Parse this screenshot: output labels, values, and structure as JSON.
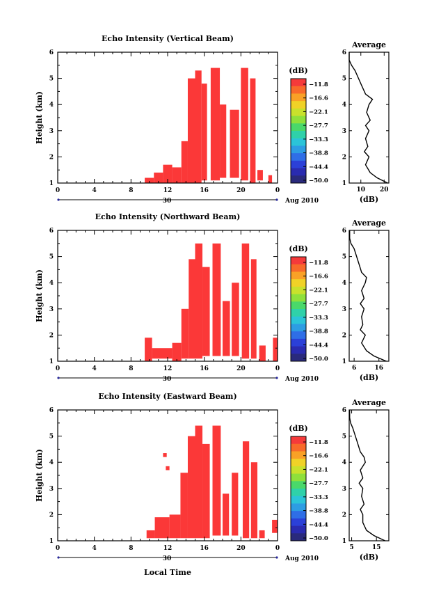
{
  "figure": {
    "xlabel": "Local Time",
    "date_label": "Aug 2010",
    "date_day": "30"
  },
  "chart_data": [
    {
      "type": "heatmap",
      "title": "Echo Intensity (Vertical Beam)",
      "ylabel": "Height (km)",
      "xlim": [
        0,
        24
      ],
      "ylim": [
        1,
        6
      ],
      "xticks": [
        "0",
        "4",
        "8",
        "12",
        "16",
        "20",
        "0"
      ],
      "yticks": [
        "1",
        "2",
        "3",
        "4",
        "5",
        "6"
      ],
      "colorbar": {
        "unit": "(dB)",
        "labels": [
          "-11.8",
          "-16.6",
          "-22.1",
          "-27.7",
          "-33.3",
          "-38.8",
          "-44.4",
          "-50.0"
        ]
      },
      "echo_regions": [
        {
          "t0": 9.5,
          "t1": 10.5,
          "h0": 1.0,
          "h1": 1.2
        },
        {
          "t0": 10.5,
          "t1": 11.5,
          "h0": 1.0,
          "h1": 1.4
        },
        {
          "t0": 11.5,
          "t1": 12.5,
          "h0": 1.0,
          "h1": 1.7
        },
        {
          "t0": 12.5,
          "t1": 13.5,
          "h0": 1.0,
          "h1": 1.6
        },
        {
          "t0": 13.5,
          "t1": 14.2,
          "h0": 1.0,
          "h1": 2.6
        },
        {
          "t0": 14.2,
          "t1": 15.0,
          "h0": 1.0,
          "h1": 5.0
        },
        {
          "t0": 15.0,
          "t1": 15.7,
          "h0": 1.0,
          "h1": 5.3
        },
        {
          "t0": 15.7,
          "t1": 16.3,
          "h0": 1.1,
          "h1": 4.8
        },
        {
          "t0": 16.7,
          "t1": 17.7,
          "h0": 1.1,
          "h1": 5.4
        },
        {
          "t0": 17.7,
          "t1": 18.4,
          "h0": 1.2,
          "h1": 4.0
        },
        {
          "t0": 18.8,
          "t1": 19.8,
          "h0": 1.2,
          "h1": 3.8
        },
        {
          "t0": 20.0,
          "t1": 20.8,
          "h0": 1.1,
          "h1": 5.4
        },
        {
          "t0": 21.0,
          "t1": 21.6,
          "h0": 1.0,
          "h1": 5.0
        },
        {
          "t0": 21.8,
          "t1": 22.4,
          "h0": 1.1,
          "h1": 1.5
        },
        {
          "t0": 23.0,
          "t1": 23.4,
          "h0": 1.0,
          "h1": 1.3
        }
      ],
      "profile": {
        "title": "Average",
        "xlabel": "(dB)",
        "xlim": [
          5,
          22
        ],
        "xticks": [
          10,
          20
        ],
        "xtick_labels": [
          "10",
          "20"
        ],
        "heights": [
          1.0,
          1.2,
          1.4,
          1.7,
          2.0,
          2.2,
          2.4,
          2.7,
          3.0,
          3.2,
          3.4,
          3.7,
          4.0,
          4.2,
          4.4,
          4.7,
          5.0,
          5.3,
          5.5,
          5.7,
          6.0
        ],
        "values": [
          21.5,
          17,
          14,
          12,
          13.5,
          11.5,
          13,
          12,
          13.5,
          12,
          14,
          12.5,
          13.5,
          15,
          12,
          10.5,
          9,
          7.5,
          6,
          5,
          5
        ]
      }
    },
    {
      "type": "heatmap",
      "title": "Echo Intensity (Northward Beam)",
      "ylabel": "Height (km)",
      "xlim": [
        0,
        24
      ],
      "ylim": [
        1,
        6
      ],
      "xticks": [
        "0",
        "4",
        "8",
        "12",
        "16",
        "20",
        "0"
      ],
      "yticks": [
        "1",
        "2",
        "3",
        "4",
        "5",
        "6"
      ],
      "colorbar": {
        "unit": "(dB)",
        "labels": [
          "-11.8",
          "-16.6",
          "-22.1",
          "-27.7",
          "-33.3",
          "-38.8",
          "-44.4",
          "-50.0"
        ]
      },
      "echo_regions": [
        {
          "t0": 9.5,
          "t1": 10.3,
          "h0": 1.0,
          "h1": 1.9
        },
        {
          "t0": 10.3,
          "t1": 12.5,
          "h0": 1.1,
          "h1": 1.5
        },
        {
          "t0": 12.5,
          "t1": 13.5,
          "h0": 1.0,
          "h1": 1.7
        },
        {
          "t0": 13.5,
          "t1": 14.3,
          "h0": 1.1,
          "h1": 3.0
        },
        {
          "t0": 14.3,
          "t1": 15.0,
          "h0": 1.1,
          "h1": 4.9
        },
        {
          "t0": 15.0,
          "t1": 15.8,
          "h0": 1.1,
          "h1": 5.5
        },
        {
          "t0": 15.8,
          "t1": 16.6,
          "h0": 1.2,
          "h1": 4.6
        },
        {
          "t0": 16.9,
          "t1": 17.8,
          "h0": 1.2,
          "h1": 5.5
        },
        {
          "t0": 18.0,
          "t1": 18.8,
          "h0": 1.2,
          "h1": 3.3
        },
        {
          "t0": 19.0,
          "t1": 19.8,
          "h0": 1.2,
          "h1": 4.0
        },
        {
          "t0": 20.1,
          "t1": 20.9,
          "h0": 1.1,
          "h1": 5.5
        },
        {
          "t0": 21.1,
          "t1": 21.7,
          "h0": 1.1,
          "h1": 4.9
        },
        {
          "t0": 22.0,
          "t1": 22.7,
          "h0": 1.0,
          "h1": 1.6
        },
        {
          "t0": 23.5,
          "t1": 24.0,
          "h0": 1.0,
          "h1": 1.9
        }
      ],
      "profile": {
        "title": "Average",
        "xlabel": "(dB)",
        "xlim": [
          4,
          20
        ],
        "xticks": [
          6,
          16
        ],
        "xtick_labels": [
          "6",
          "16"
        ],
        "heights": [
          1.0,
          1.2,
          1.4,
          1.7,
          2.0,
          2.2,
          2.4,
          2.7,
          3.0,
          3.2,
          3.4,
          3.7,
          4.0,
          4.2,
          4.4,
          4.7,
          5.0,
          5.3,
          5.5,
          5.7,
          6.0
        ],
        "values": [
          19,
          14,
          11,
          9,
          10.5,
          8.5,
          9.5,
          9,
          10,
          8.5,
          10,
          9,
          10.5,
          11,
          9,
          8,
          7,
          6,
          4.7,
          4.2,
          4.2
        ]
      }
    },
    {
      "type": "heatmap",
      "title": "Echo Intensity (Eastward Beam)",
      "ylabel": "Height (km)",
      "xlim": [
        0,
        24
      ],
      "ylim": [
        1,
        6
      ],
      "xticks": [
        "0",
        "4",
        "8",
        "12",
        "16",
        "20",
        "0"
      ],
      "yticks": [
        "1",
        "2",
        "3",
        "4",
        "5",
        "6"
      ],
      "colorbar": {
        "unit": "(dB)",
        "labels": [
          "-11.8",
          "-16.6",
          "-22.1",
          "-27.7",
          "-33.3",
          "-38.8",
          "-44.4",
          "-50.0"
        ]
      },
      "echo_regions": [
        {
          "t0": 9.7,
          "t1": 10.6,
          "h0": 1.1,
          "h1": 1.4
        },
        {
          "t0": 10.6,
          "t1": 12.2,
          "h0": 1.1,
          "h1": 1.9
        },
        {
          "t0": 12.2,
          "t1": 13.4,
          "h0": 1.1,
          "h1": 2.0
        },
        {
          "t0": 13.4,
          "t1": 14.2,
          "h0": 1.1,
          "h1": 3.6
        },
        {
          "t0": 14.2,
          "t1": 15.0,
          "h0": 1.1,
          "h1": 5.0
        },
        {
          "t0": 15.0,
          "t1": 15.8,
          "h0": 1.1,
          "h1": 5.4
        },
        {
          "t0": 15.8,
          "t1": 16.6,
          "h0": 1.1,
          "h1": 4.7
        },
        {
          "t0": 16.9,
          "t1": 17.8,
          "h0": 1.2,
          "h1": 5.4
        },
        {
          "t0": 18.0,
          "t1": 18.7,
          "h0": 1.2,
          "h1": 2.8
        },
        {
          "t0": 19.0,
          "t1": 19.7,
          "h0": 1.2,
          "h1": 3.6
        },
        {
          "t0": 20.2,
          "t1": 20.9,
          "h0": 1.1,
          "h1": 4.8
        },
        {
          "t0": 21.1,
          "t1": 21.8,
          "h0": 1.1,
          "h1": 4.0
        },
        {
          "t0": 22.0,
          "t1": 22.6,
          "h0": 1.1,
          "h1": 1.4
        },
        {
          "t0": 23.4,
          "t1": 24.0,
          "h0": 1.3,
          "h1": 1.8
        },
        {
          "t0": 11.5,
          "t1": 11.9,
          "h0": 4.2,
          "h1": 4.35
        },
        {
          "t0": 11.8,
          "t1": 12.2,
          "h0": 3.7,
          "h1": 3.85
        }
      ],
      "profile": {
        "title": "Average",
        "xlabel": "(dB)",
        "xlim": [
          4,
          20
        ],
        "xticks": [
          5,
          15
        ],
        "xtick_labels": [
          "5",
          "15"
        ],
        "heights": [
          1.0,
          1.2,
          1.4,
          1.7,
          2.0,
          2.2,
          2.4,
          2.7,
          3.0,
          3.2,
          3.4,
          3.7,
          4.0,
          4.2,
          4.4,
          4.7,
          5.0,
          5.3,
          5.5,
          5.7,
          6.0
        ],
        "values": [
          18.5,
          14,
          11,
          9.5,
          9.5,
          8.5,
          10,
          9,
          9.5,
          8,
          9.5,
          8.5,
          10.5,
          10,
          8.5,
          7.5,
          6.5,
          5.5,
          4.6,
          4.2,
          4.2
        ]
      }
    }
  ],
  "colors": {
    "echo": "#fb3838",
    "colorbar": [
      "#f53a3a",
      "#f86a2a",
      "#f9a126",
      "#f0d227",
      "#c9e12c",
      "#8fe03b",
      "#4ad86a",
      "#2fd1a9",
      "#2bc4d8",
      "#2d9de3",
      "#2f6ee6",
      "#2b40d8",
      "#2a2bb0",
      "#2a2a7c"
    ]
  }
}
